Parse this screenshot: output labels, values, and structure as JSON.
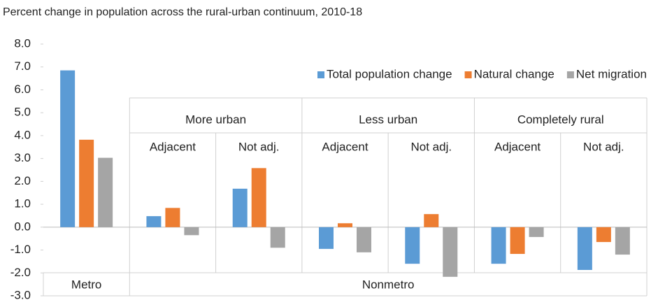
{
  "chart_data": {
    "type": "bar",
    "title": "Percent change in population across the rural-urban continuum, 2010-18",
    "categories": [
      null,
      "Adjacent",
      "Not adj.",
      "Adjacent",
      "Not adj.",
      "Adjacent",
      "Not adj."
    ],
    "category_groups": [
      "More urban",
      "Less urban",
      "Completely rural"
    ],
    "category_supergroups": [
      "Metro",
      "Nonmetro"
    ],
    "series": [
      {
        "name": "Total population change",
        "color": "#5b9bd5",
        "values": [
          6.85,
          0.48,
          1.68,
          -0.95,
          -1.6,
          -1.6,
          -1.87
        ]
      },
      {
        "name": "Natural change",
        "color": "#ed7d31",
        "values": [
          3.82,
          0.84,
          2.58,
          0.17,
          0.57,
          -1.17,
          -0.65
        ]
      },
      {
        "name": "Net migration",
        "color": "#a5a5a5",
        "values": [
          3.03,
          -0.35,
          -0.9,
          -1.1,
          -2.17,
          -0.43,
          -1.2
        ]
      }
    ],
    "ylim": [
      -3,
      8
    ],
    "yticks": [
      {
        "value": -3,
        "label": "-3.0"
      },
      {
        "value": -2,
        "label": "-2.0"
      },
      {
        "value": -1,
        "label": "-1.0"
      },
      {
        "value": 0,
        "label": "0.0"
      },
      {
        "value": 1,
        "label": "1.0"
      },
      {
        "value": 2,
        "label": "2.0"
      },
      {
        "value": 3,
        "label": "3.0"
      },
      {
        "value": 4,
        "label": "4.0"
      },
      {
        "value": 5,
        "label": "5.0"
      },
      {
        "value": 6,
        "label": "6.0"
      },
      {
        "value": 7,
        "label": "7.0"
      },
      {
        "value": 8,
        "label": "8.0"
      }
    ],
    "grid": false,
    "legend": "top-right"
  }
}
